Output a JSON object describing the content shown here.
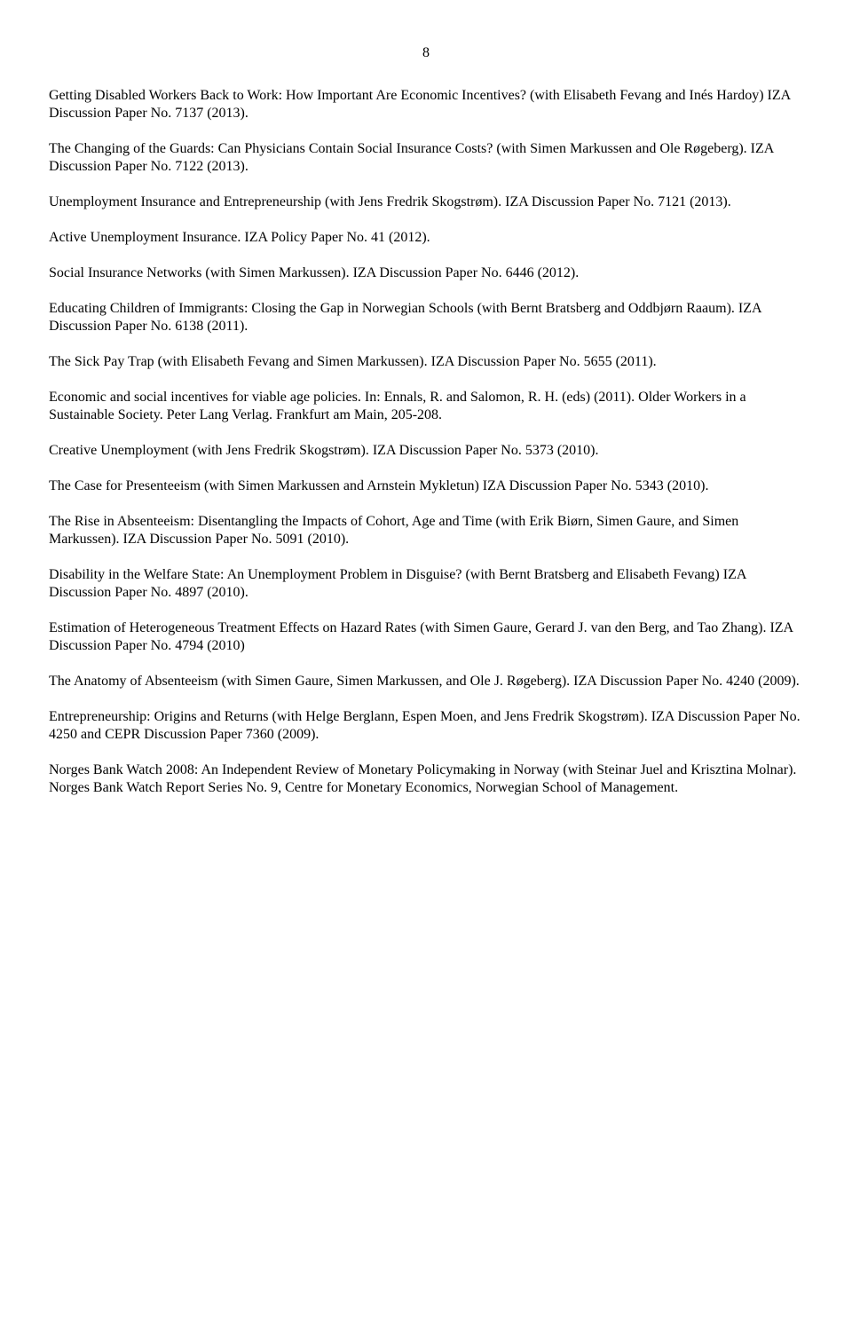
{
  "page_number": "8",
  "text_color": "#000000",
  "background_color": "#ffffff",
  "font_family": "Times New Roman",
  "base_fontsize": 16,
  "references": [
    "Getting Disabled Workers Back to Work: How Important Are Economic Incentives? (with Elisabeth Fevang and Inés Hardoy) IZA Discussion Paper No. 7137 (2013).",
    "The Changing of the Guards: Can Physicians Contain Social Insurance Costs? (with Simen Markussen and Ole Røgeberg). IZA Discussion Paper No. 7122 (2013).",
    "Unemployment Insurance and Entrepreneurship (with Jens Fredrik Skogstrøm). IZA Discussion Paper No. 7121 (2013).",
    "Active Unemployment Insurance. IZA Policy Paper No. 41 (2012).",
    "Social Insurance Networks (with Simen Markussen). IZA Discussion Paper No. 6446 (2012).",
    "Educating Children of Immigrants: Closing the Gap in Norwegian Schools (with Bernt Bratsberg and Oddbjørn Raaum). IZA Discussion Paper No. 6138 (2011).",
    "The Sick Pay Trap (with Elisabeth Fevang and Simen Markussen). IZA Discussion Paper No. 5655 (2011).",
    "Economic and social incentives for viable age policies. In: Ennals, R. and Salomon, R. H. (eds) (2011). Older Workers in a Sustainable Society. Peter Lang Verlag. Frankfurt am Main, 205-208.",
    "Creative Unemployment (with Jens Fredrik Skogstrøm). IZA Discussion Paper No. 5373 (2010).",
    "The Case for Presenteeism (with Simen Markussen and Arnstein Mykletun) IZA Discussion Paper No. 5343 (2010).",
    "The Rise in Absenteeism: Disentangling the Impacts of Cohort, Age and Time (with Erik Biørn, Simen Gaure, and Simen Markussen). IZA Discussion Paper No. 5091 (2010).",
    "Disability in the Welfare State: An Unemployment Problem in Disguise? (with Bernt Bratsberg and Elisabeth Fevang) IZA Discussion Paper No. 4897 (2010).",
    "Estimation of Heterogeneous Treatment Effects on Hazard Rates (with Simen Gaure, Gerard J. van den Berg, and Tao Zhang). IZA Discussion Paper No. 4794 (2010)",
    "The Anatomy of Absenteeism (with Simen Gaure, Simen Markussen, and Ole J. Røgeberg). IZA Discussion Paper No. 4240 (2009).",
    "Entrepreneurship: Origins and Returns (with Helge Berglann, Espen Moen, and Jens Fredrik Skogstrøm). IZA Discussion Paper No. 4250 and CEPR Discussion Paper 7360 (2009).",
    "Norges Bank Watch 2008: An Independent Review of Monetary Policymaking in Norway (with Steinar Juel and Krisztina Molnar). Norges Bank Watch Report Series No. 9, Centre for Monetary Economics, Norwegian School of Management."
  ]
}
